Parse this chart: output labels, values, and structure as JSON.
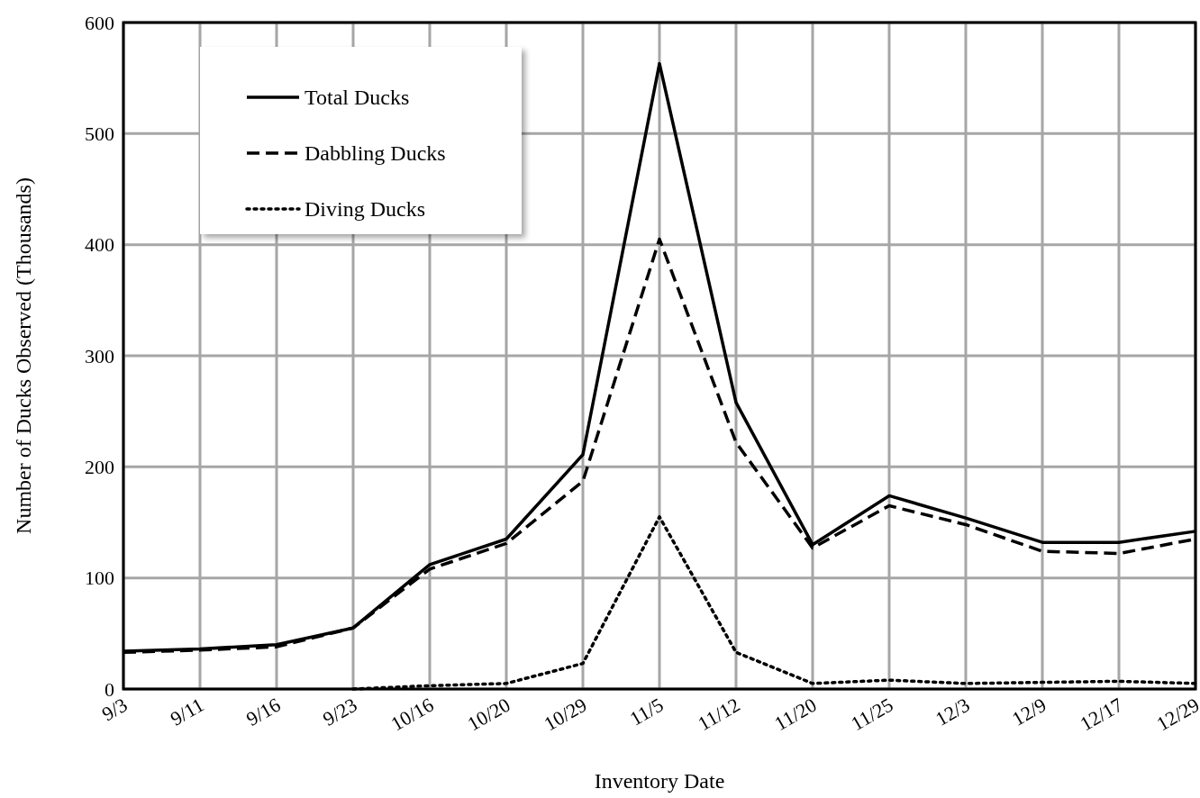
{
  "chart_data": {
    "type": "line",
    "xlabel": "Inventory Date",
    "ylabel": "Number of Ducks Observed (Thousands)",
    "categories": [
      "9/3",
      "9/11",
      "9/16",
      "9/23",
      "10/16",
      "10/20",
      "10/29",
      "11/5",
      "11/12",
      "11/20",
      "11/25",
      "12/3",
      "12/9",
      "12/17",
      "12/29"
    ],
    "series": [
      {
        "name": "Total Ducks",
        "color": "#000000",
        "line_style": "solid",
        "values": [
          34,
          36,
          40,
          55,
          112,
          135,
          211,
          563,
          258,
          130,
          174,
          154,
          132,
          132,
          142
        ]
      },
      {
        "name": "Dabbling Ducks",
        "color": "#000000",
        "line_style": "dashed",
        "values": [
          33,
          35,
          38,
          55,
          108,
          131,
          187,
          405,
          222,
          127,
          165,
          148,
          124,
          122,
          135
        ]
      },
      {
        "name": "Diving Ducks",
        "color": "#000000",
        "line_style": "dotted",
        "values": [
          null,
          null,
          null,
          0,
          3,
          5,
          23,
          155,
          33,
          5,
          8,
          5,
          6,
          7,
          5
        ]
      }
    ],
    "ylim": [
      0,
      600
    ],
    "yticks": [
      0,
      100,
      200,
      300,
      400,
      500,
      600
    ],
    "grid": true,
    "legend": "top left",
    "marker": "none"
  }
}
